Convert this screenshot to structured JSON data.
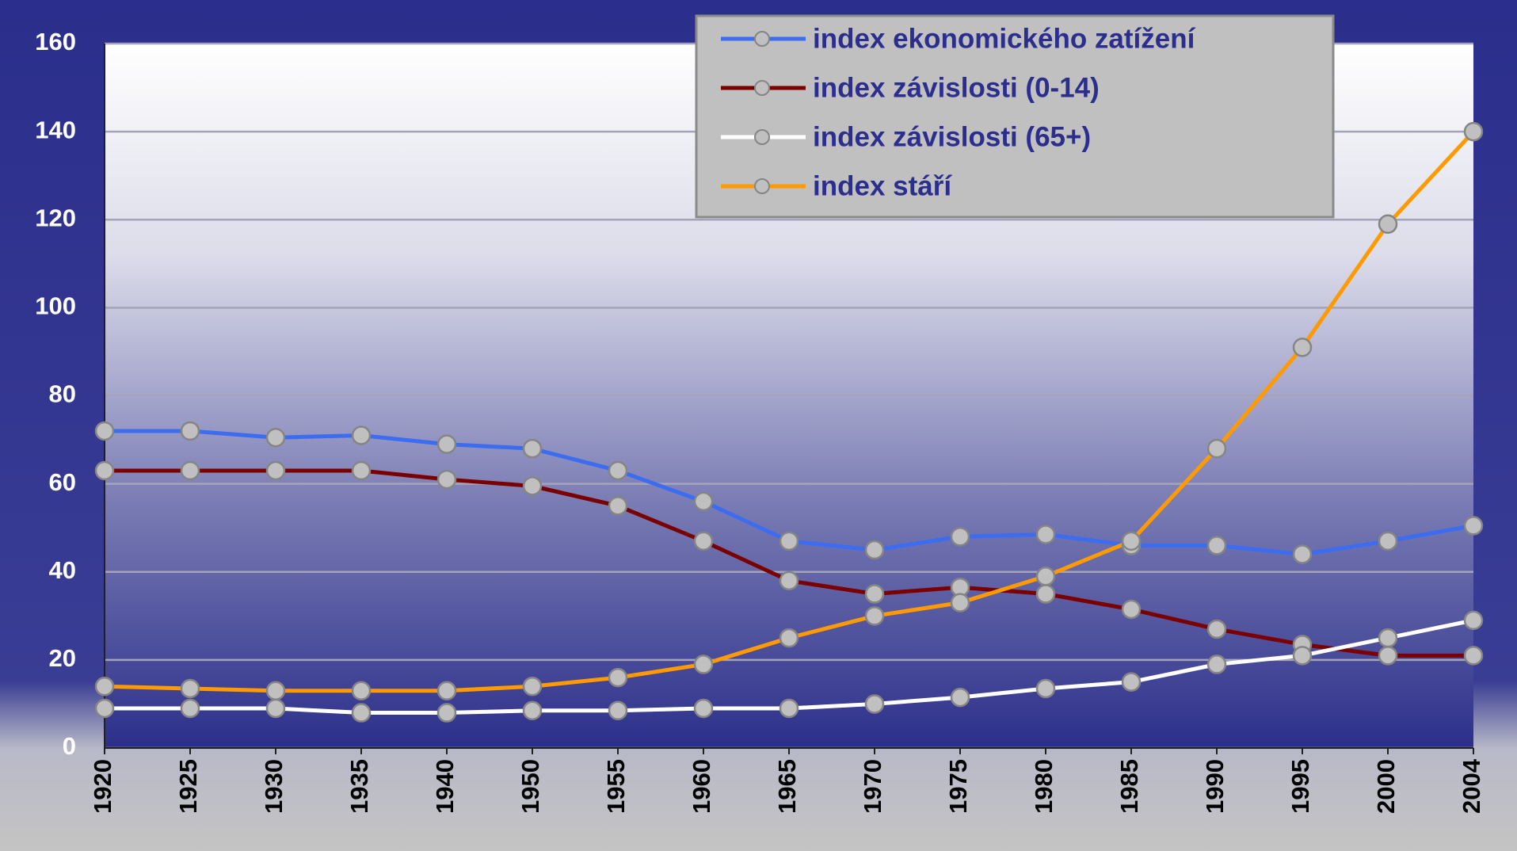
{
  "chart_data": {
    "type": "line",
    "categories": [
      "1920",
      "1925",
      "1930",
      "1935",
      "1940",
      "1950",
      "1955",
      "1960",
      "1965",
      "1970",
      "1975",
      "1980",
      "1985",
      "1990",
      "1995",
      "2000",
      "2004"
    ],
    "series": [
      {
        "name": "index ekonomického zatížení",
        "color": "#3c6cf0",
        "values": [
          72,
          72,
          70.5,
          71,
          69,
          68,
          63,
          56,
          47,
          45,
          48,
          48.5,
          46,
          46,
          44,
          47,
          50.5
        ]
      },
      {
        "name": "index závislosti (0-14)",
        "color": "#7a0000",
        "values": [
          63,
          63,
          63,
          63,
          61,
          59.5,
          55,
          47,
          38,
          35,
          36.5,
          35,
          31.5,
          27,
          23.5,
          21,
          21
        ]
      },
      {
        "name": "index závislosti (65+)",
        "color": "#ffffff",
        "values": [
          9,
          9,
          9,
          8,
          8,
          8.5,
          8.5,
          9,
          9,
          10,
          11.5,
          13.5,
          15,
          19,
          21,
          25,
          29
        ]
      },
      {
        "name": "index stáří",
        "color": "#ff9a00",
        "values": [
          14,
          13.5,
          13,
          13,
          13,
          14,
          16,
          19,
          25,
          30,
          33,
          39,
          47,
          68,
          91,
          119,
          140
        ]
      }
    ],
    "ylim": [
      0,
      160
    ],
    "yticks": [
      0,
      20,
      40,
      60,
      80,
      100,
      120,
      140,
      160
    ],
    "grid": true,
    "legend": "top-right"
  }
}
